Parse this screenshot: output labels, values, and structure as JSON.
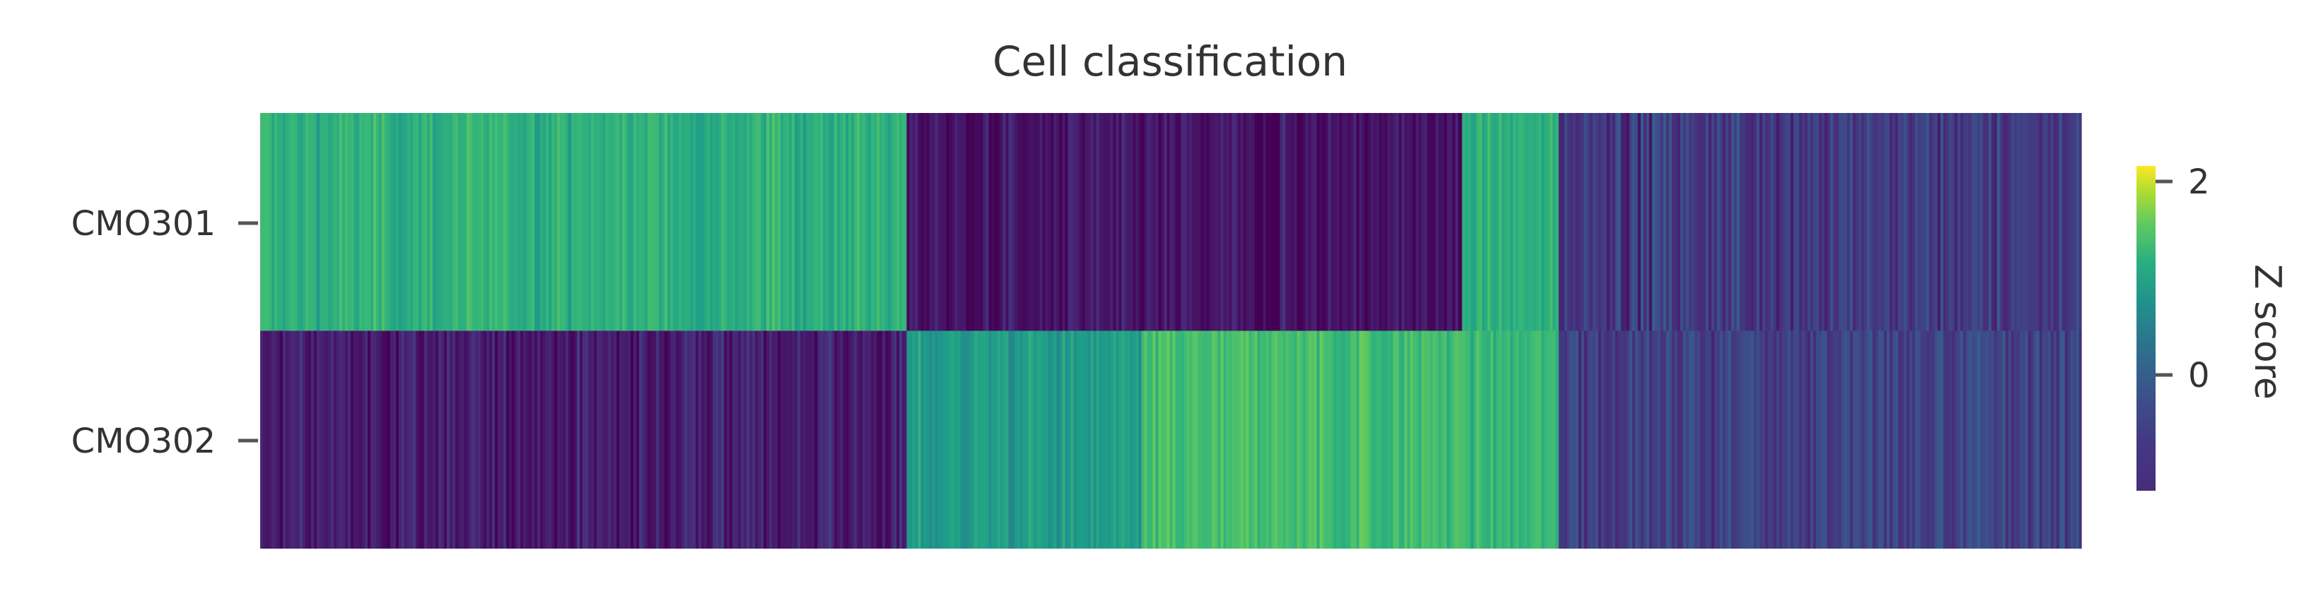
{
  "chart_data": {
    "type": "heatmap",
    "title": "Cell classification",
    "rows": [
      "CMO301",
      "CMO302"
    ],
    "colormap": "viridis",
    "colorbar": {
      "label": "Z score",
      "ticks": [
        {
          "value": 2,
          "label": "2"
        },
        {
          "value": 0,
          "label": "0"
        }
      ],
      "range": [
        -1.2,
        2.2
      ]
    },
    "column_segments": [
      {
        "fraction": 0.355,
        "row_means": [
          1.25,
          -0.9
        ],
        "spread": 0.35
      },
      {
        "fraction": 0.305,
        "row_means": [
          -1.0,
          1.35
        ],
        "spread": 0.35
      },
      {
        "fraction": 0.053,
        "row_means": [
          1.2,
          1.35
        ],
        "spread": 0.3
      },
      {
        "fraction": 0.287,
        "row_means": [
          -0.5,
          -0.45
        ],
        "spread": 0.45
      }
    ],
    "sub_bands": [
      {
        "segment": 1,
        "row": 1,
        "start": 0.0,
        "end": 0.42,
        "mean": 0.9
      },
      {
        "segment": 1,
        "row": 1,
        "start": 0.42,
        "end": 1.0,
        "mean": 1.45
      }
    ],
    "grid": false,
    "legend": "right"
  }
}
